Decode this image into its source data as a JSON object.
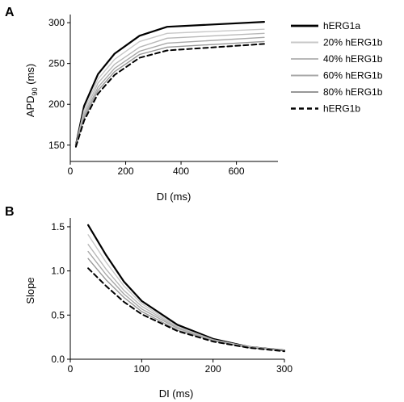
{
  "colors": {
    "hERG1a": "#000000",
    "p20": "#c8c8c8",
    "p40": "#b8b8b8",
    "p60": "#a8a8a8",
    "p80": "#989898",
    "hERG1b": "#000000"
  },
  "chart_data": [
    {
      "panel_label": "A",
      "type": "line",
      "xlabel": "DI (ms)",
      "ylabel_main": "APD",
      "ylabel_sub": "90",
      "ylabel_tail": " (ms)",
      "xlim": [
        0,
        750
      ],
      "ylim": [
        130,
        310
      ],
      "xticks": [
        0,
        200,
        400,
        600
      ],
      "yticks": [
        150,
        200,
        250,
        300
      ],
      "legend_position": "right",
      "series": [
        {
          "name": "hERG1a",
          "style": "solid-thick",
          "color_key": "hERG1a",
          "x": [
            20,
            50,
            100,
            160,
            250,
            350,
            700
          ],
          "y": [
            150,
            198,
            237,
            262,
            284,
            295,
            301
          ]
        },
        {
          "name": "20% hERG1b",
          "style": "solid",
          "color_key": "p20",
          "x": [
            20,
            50,
            100,
            160,
            250,
            350,
            700
          ],
          "y": [
            150,
            193,
            231,
            255,
            277,
            287,
            292
          ]
        },
        {
          "name": "40% hERG1b",
          "style": "solid",
          "color_key": "p40",
          "x": [
            20,
            50,
            100,
            160,
            250,
            350,
            700
          ],
          "y": [
            150,
            189,
            226,
            249,
            270,
            281,
            287
          ]
        },
        {
          "name": "60% hERG1b",
          "style": "solid",
          "color_key": "p60",
          "x": [
            20,
            50,
            100,
            160,
            250,
            350,
            700
          ],
          "y": [
            150,
            186,
            221,
            244,
            265,
            275,
            282
          ]
        },
        {
          "name": "80% hERG1b",
          "style": "solid",
          "color_key": "p80",
          "x": [
            20,
            50,
            100,
            160,
            250,
            350,
            700
          ],
          "y": [
            149,
            183,
            217,
            240,
            261,
            270,
            277
          ]
        },
        {
          "name": "hERG1b",
          "style": "dashed-thick",
          "color_key": "hERG1b",
          "x": [
            20,
            50,
            100,
            160,
            250,
            350,
            700
          ],
          "y": [
            148,
            180,
            213,
            236,
            257,
            266,
            274
          ]
        }
      ]
    },
    {
      "panel_label": "B",
      "type": "line",
      "xlabel": "DI (ms)",
      "ylabel": "Slope",
      "xlim": [
        0,
        300
      ],
      "ylim": [
        0.0,
        1.6
      ],
      "xticks": [
        0,
        100,
        200,
        300
      ],
      "yticks": [
        0.0,
        0.5,
        1.0,
        1.5
      ],
      "ytick_labels": [
        "0.0",
        "0.5",
        "1.0",
        "1.5"
      ],
      "series": [
        {
          "style": "solid-thick",
          "color_key": "hERG1a",
          "x": [
            25,
            50,
            75,
            100,
            150,
            200,
            250,
            300
          ],
          "y": [
            1.52,
            1.18,
            0.88,
            0.66,
            0.39,
            0.23,
            0.14,
            0.1
          ]
        },
        {
          "style": "solid",
          "color_key": "p20",
          "x": [
            25,
            50,
            75,
            100,
            150,
            200,
            250,
            300
          ],
          "y": [
            1.41,
            1.1,
            0.83,
            0.63,
            0.37,
            0.22,
            0.14,
            0.1
          ]
        },
        {
          "style": "solid",
          "color_key": "p40",
          "x": [
            25,
            50,
            75,
            100,
            150,
            200,
            250,
            300
          ],
          "y": [
            1.3,
            1.02,
            0.78,
            0.6,
            0.36,
            0.22,
            0.14,
            0.1
          ]
        },
        {
          "style": "solid",
          "color_key": "p60",
          "x": [
            25,
            50,
            75,
            100,
            150,
            200,
            250,
            300
          ],
          "y": [
            1.22,
            0.96,
            0.74,
            0.57,
            0.35,
            0.21,
            0.13,
            0.1
          ]
        },
        {
          "style": "solid",
          "color_key": "p80",
          "x": [
            25,
            50,
            75,
            100,
            150,
            200,
            250,
            300
          ],
          "y": [
            1.14,
            0.9,
            0.7,
            0.54,
            0.33,
            0.21,
            0.13,
            0.1
          ]
        },
        {
          "style": "dashed-thick",
          "color_key": "hERG1b",
          "x": [
            25,
            50,
            75,
            100,
            150,
            200,
            250,
            300
          ],
          "y": [
            1.03,
            0.83,
            0.65,
            0.51,
            0.32,
            0.2,
            0.13,
            0.09
          ]
        }
      ]
    }
  ]
}
